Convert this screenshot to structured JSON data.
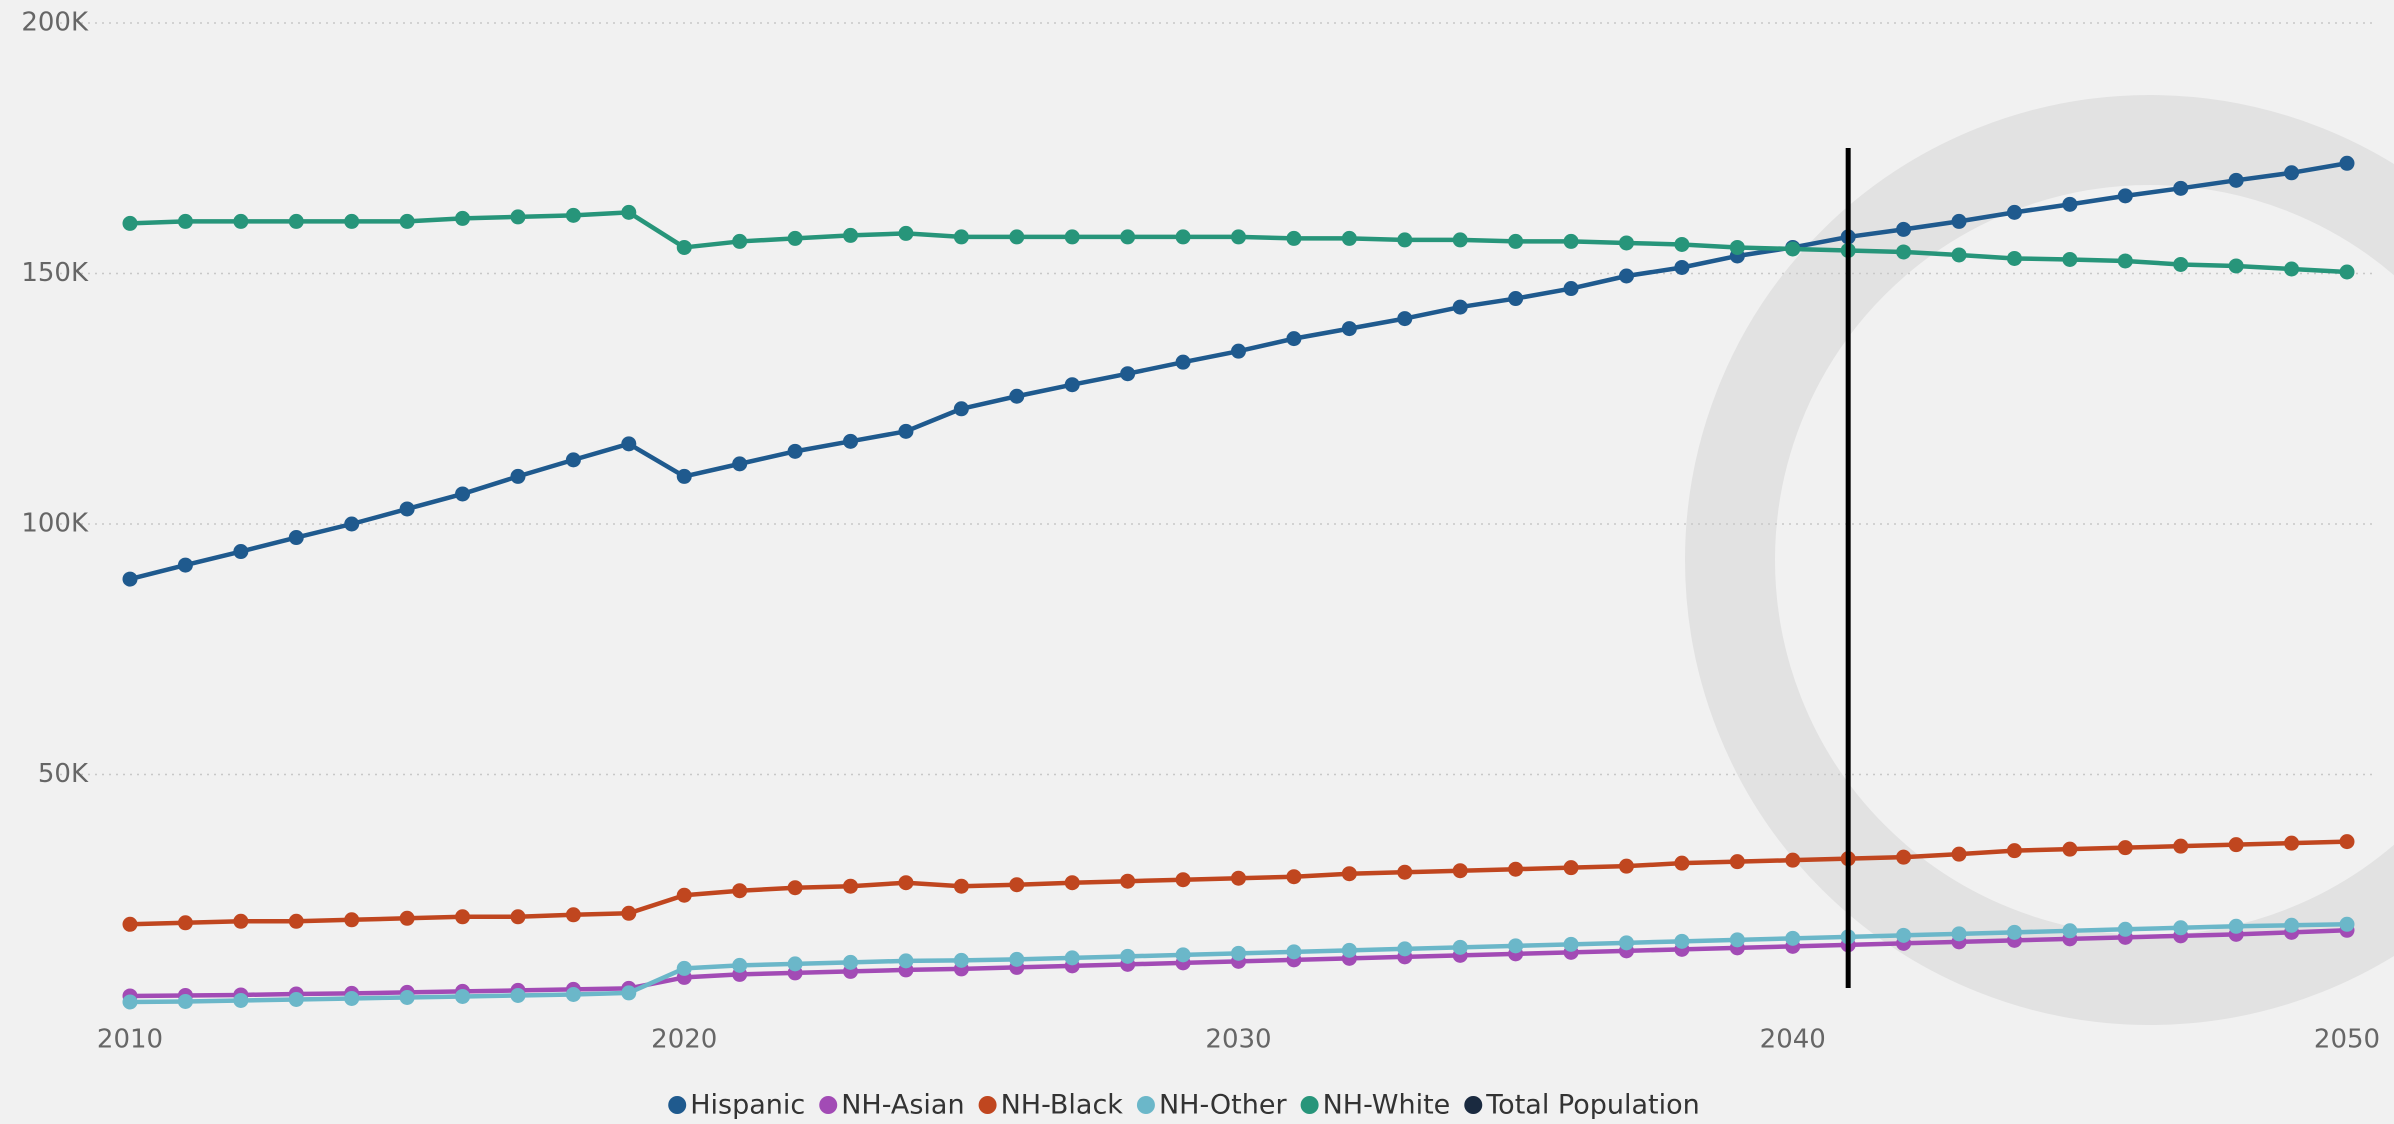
{
  "chart_data": {
    "type": "line",
    "x": [
      2010,
      2011,
      2012,
      2013,
      2014,
      2015,
      2016,
      2017,
      2018,
      2019,
      2020,
      2021,
      2022,
      2023,
      2024,
      2025,
      2026,
      2027,
      2028,
      2029,
      2030,
      2031,
      2032,
      2033,
      2034,
      2035,
      2036,
      2037,
      2038,
      2039,
      2040,
      2041,
      2042,
      2043,
      2044,
      2045,
      2046,
      2047,
      2048,
      2049,
      2050
    ],
    "xlim": [
      2010,
      2050
    ],
    "xticks": [
      2010,
      2020,
      2030,
      2040,
      2050
    ],
    "ylim": [
      0,
      200000
    ],
    "yticks": [
      {
        "value": 50000,
        "label": "50K"
      },
      {
        "value": 100000,
        "label": "100K"
      },
      {
        "value": 150000,
        "label": "150K"
      },
      {
        "value": 200000,
        "label": "200K"
      }
    ],
    "grid": true,
    "vline_x": 2041,
    "series": [
      {
        "name": "Hispanic",
        "color": "#1f5a8e",
        "values": [
          89000,
          91800,
          94500,
          97300,
          100000,
          103000,
          106000,
          109500,
          112800,
          116000,
          109500,
          112000,
          114500,
          116500,
          118500,
          123000,
          125500,
          127800,
          130000,
          132300,
          134500,
          137000,
          139000,
          141000,
          143300,
          145000,
          147000,
          149500,
          151200,
          153500,
          155200,
          157300,
          158800,
          160400,
          162200,
          163800,
          165500,
          167000,
          168600,
          170100,
          172000
        ]
      },
      {
        "name": "NH-Asian",
        "color": "#a24bb5",
        "values": [
          5800,
          5900,
          6000,
          6200,
          6300,
          6500,
          6700,
          6900,
          7100,
          7300,
          9500,
          10100,
          10400,
          10700,
          11000,
          11200,
          11500,
          11800,
          12100,
          12400,
          12700,
          13000,
          13300,
          13600,
          13900,
          14200,
          14500,
          14800,
          15100,
          15400,
          15700,
          16000,
          16300,
          16600,
          16900,
          17200,
          17500,
          17800,
          18100,
          18500,
          18900
        ]
      },
      {
        "name": "NH-Black",
        "color": "#c0461f",
        "values": [
          20100,
          20400,
          20700,
          20700,
          21000,
          21300,
          21600,
          21600,
          22000,
          22300,
          25900,
          26800,
          27400,
          27700,
          28400,
          27700,
          28000,
          28400,
          28700,
          29000,
          29300,
          29600,
          30200,
          30500,
          30800,
          31100,
          31400,
          31700,
          32300,
          32600,
          32900,
          33200,
          33500,
          34100,
          34800,
          35100,
          35400,
          35700,
          36000,
          36300,
          36600
        ]
      },
      {
        "name": "NH-Other",
        "color": "#6bb7c9",
        "values": [
          4600,
          4700,
          4900,
          5100,
          5300,
          5500,
          5700,
          5900,
          6100,
          6400,
          11300,
          11900,
          12200,
          12500,
          12800,
          12900,
          13100,
          13400,
          13700,
          14000,
          14300,
          14600,
          14900,
          15200,
          15500,
          15800,
          16100,
          16400,
          16700,
          17000,
          17300,
          17600,
          17900,
          18200,
          18500,
          18800,
          19100,
          19400,
          19700,
          19900,
          20100
        ]
      },
      {
        "name": "NH-White",
        "color": "#27957a",
        "values": [
          160000,
          160400,
          160400,
          160400,
          160400,
          160400,
          161000,
          161300,
          161600,
          162200,
          155200,
          156400,
          157000,
          157600,
          158000,
          157300,
          157300,
          157300,
          157300,
          157300,
          157300,
          157000,
          157000,
          156700,
          156700,
          156400,
          156400,
          156100,
          155800,
          155200,
          154900,
          154600,
          154300,
          153700,
          153000,
          152800,
          152500,
          151800,
          151500,
          150900,
          150300
        ]
      },
      {
        "name": "Total Population",
        "color": "#1a2a40",
        "values": [
          null,
          null,
          null,
          null,
          null,
          null,
          null,
          null,
          null,
          null,
          null,
          null,
          null,
          null,
          null,
          null,
          null,
          null,
          null,
          null,
          null,
          null,
          null,
          null,
          null,
          null,
          null,
          null,
          null,
          null,
          null,
          null,
          null,
          null,
          null,
          null,
          null,
          null,
          null,
          null,
          null
        ]
      }
    ]
  }
}
